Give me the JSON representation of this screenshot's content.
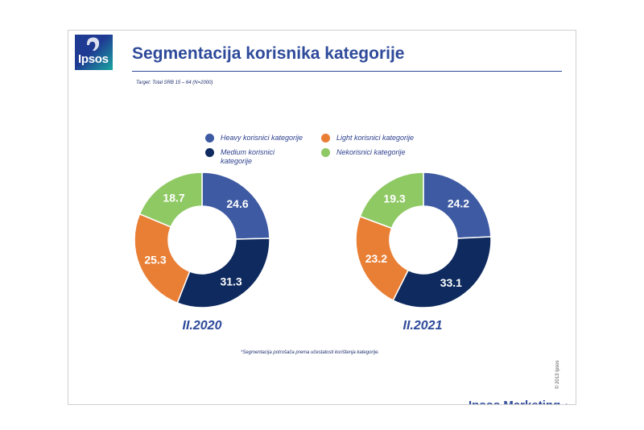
{
  "brand": {
    "logo_text": "Ipsos",
    "footer_text": "Ipsos Marketing",
    "footer_mark": "4",
    "copyright": "© 2013 Ipsos"
  },
  "page": {
    "title": "Segmentacija korisnika kategorije",
    "target_note": "Target: Total SRB 15 – 64 (N=2000)",
    "footnote": "*Segmentacija potrošača prema učestalosti korištenja kategorije."
  },
  "colors": {
    "heavy": "#3e5aa2",
    "medium": "#0e2a5e",
    "light": "#e97f35",
    "non": "#8fc964",
    "title": "#2e4a9a"
  },
  "chart_data": {
    "type": "pie",
    "subtype": "donut",
    "legend": [
      {
        "key": "heavy",
        "label": "Heavy korisnici kategorije"
      },
      {
        "key": "light",
        "label": "Light korisnici kategorije"
      },
      {
        "key": "medium",
        "label": "Medium korisnici kategorije"
      },
      {
        "key": "non",
        "label": "Nekorisnici kategorije"
      }
    ],
    "slice_order": [
      "heavy",
      "medium",
      "light",
      "non"
    ],
    "charts": [
      {
        "label": "II.2020",
        "values": {
          "heavy": 24.6,
          "medium": 31.3,
          "light": 25.3,
          "non": 18.7
        },
        "value_labels": {
          "heavy": "24.6",
          "medium": "31.3",
          "light": "25.3",
          "non": "18.7"
        }
      },
      {
        "label": "II.2021",
        "values": {
          "heavy": 24.2,
          "medium": 33.1,
          "light": 23.2,
          "non": 19.3
        },
        "value_labels": {
          "heavy": "24.2",
          "medium": "33.1",
          "light": "23.2",
          "non": "19.3"
        }
      }
    ]
  }
}
